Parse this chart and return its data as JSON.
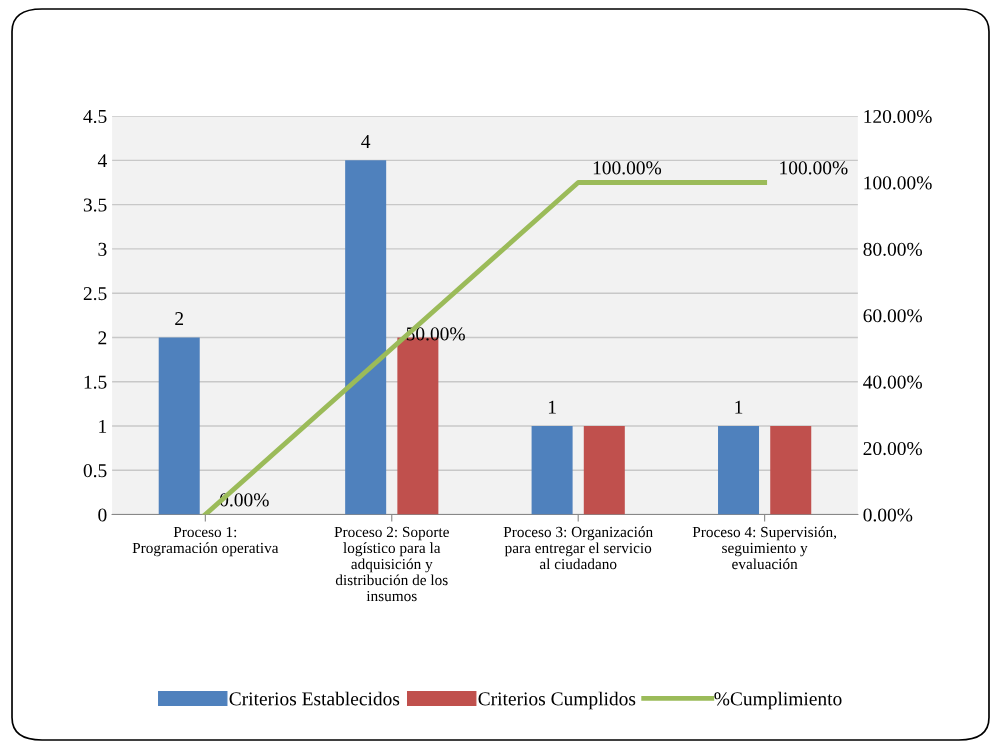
{
  "chart_data": {
    "type": "bar",
    "categories": [
      "Proceso 1:\nProgramación operativa",
      "Proceso 2: Soporte\nlogístico para la\nadquisición y\ndistribución de los\ninsumos",
      "Proceso 3: Organización\npara entregar el servicio\nal ciudadano",
      "Proceso 4: Supervisión,\nseguimiento y\nevaluación"
    ],
    "series": [
      {
        "name": "Criterios Establecidos",
        "color": "#4f81bd",
        "values": [
          2,
          4,
          1,
          1
        ],
        "value_labels": [
          "2",
          "4",
          "1",
          "1"
        ]
      },
      {
        "name": "Criterios Cumplidos",
        "color": "#c0504d",
        "values": [
          0,
          2,
          1,
          1
        ]
      },
      {
        "name": "%Cumplimiento",
        "type": "line",
        "axis": "y2",
        "color": "#9bbb59",
        "values": [
          0,
          50,
          100,
          100
        ],
        "value_labels": [
          "0.00%",
          "50.00%",
          "100.00%",
          "100.00%"
        ]
      }
    ],
    "ylim": [
      0,
      4.5
    ],
    "yticks": [
      0,
      0.5,
      1,
      1.5,
      2,
      2.5,
      3,
      3.5,
      4,
      4.5
    ],
    "y2lim": [
      0,
      120
    ],
    "y2ticks": [
      {
        "value": 0,
        "label": "0.00%"
      },
      {
        "value": 20,
        "label": "20.00%"
      },
      {
        "value": 40,
        "label": "40.00%"
      },
      {
        "value": 60,
        "label": "60.00%"
      },
      {
        "value": 80,
        "label": "80.00%"
      },
      {
        "value": 100,
        "label": "100.00%"
      },
      {
        "value": 120,
        "label": "120.00%"
      }
    ],
    "grid": "y",
    "legend": "bottom",
    "marker": "none",
    "line_style": "solid"
  }
}
